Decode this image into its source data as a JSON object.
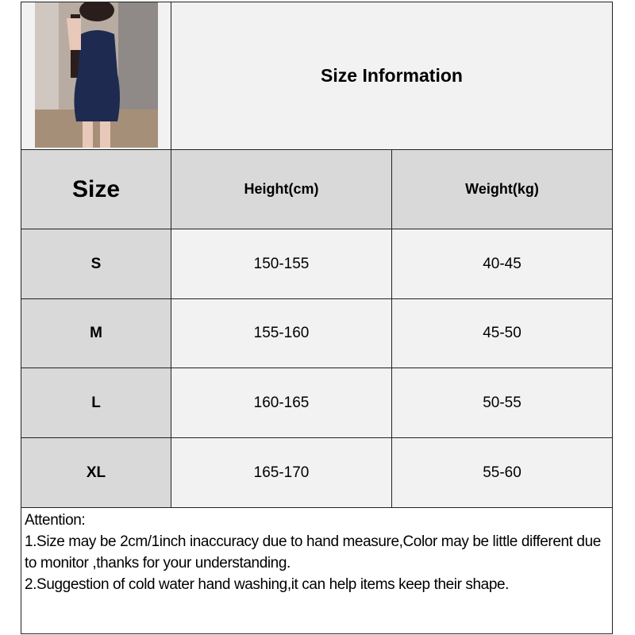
{
  "title": "Size Information",
  "product_image": {
    "icon": "product-photo-dress",
    "dress_color": "#1e2a4f"
  },
  "table": {
    "headers": [
      "Size",
      "Height(cm)",
      "Weight(kg)"
    ],
    "rows": [
      {
        "size": "S",
        "height": "150-155",
        "weight": "40-45"
      },
      {
        "size": "M",
        "height": "155-160",
        "weight": "45-50"
      },
      {
        "size": "L",
        "height": "160-165",
        "weight": "50-55"
      },
      {
        "size": "XL",
        "height": "165-170",
        "weight": "55-60"
      }
    ]
  },
  "notes": {
    "heading": "Attention:",
    "lines": [
      "1.Size may be 2cm/1inch inaccuracy due to hand measure,Color may be little different due to monitor ,thanks for your understanding.",
      "2.Suggestion of cold water hand washing,it can help items keep their shape."
    ]
  },
  "colors": {
    "header_bg": "#d9d9d9",
    "cell_bg": "#f2f2f2",
    "border": "#222222"
  }
}
